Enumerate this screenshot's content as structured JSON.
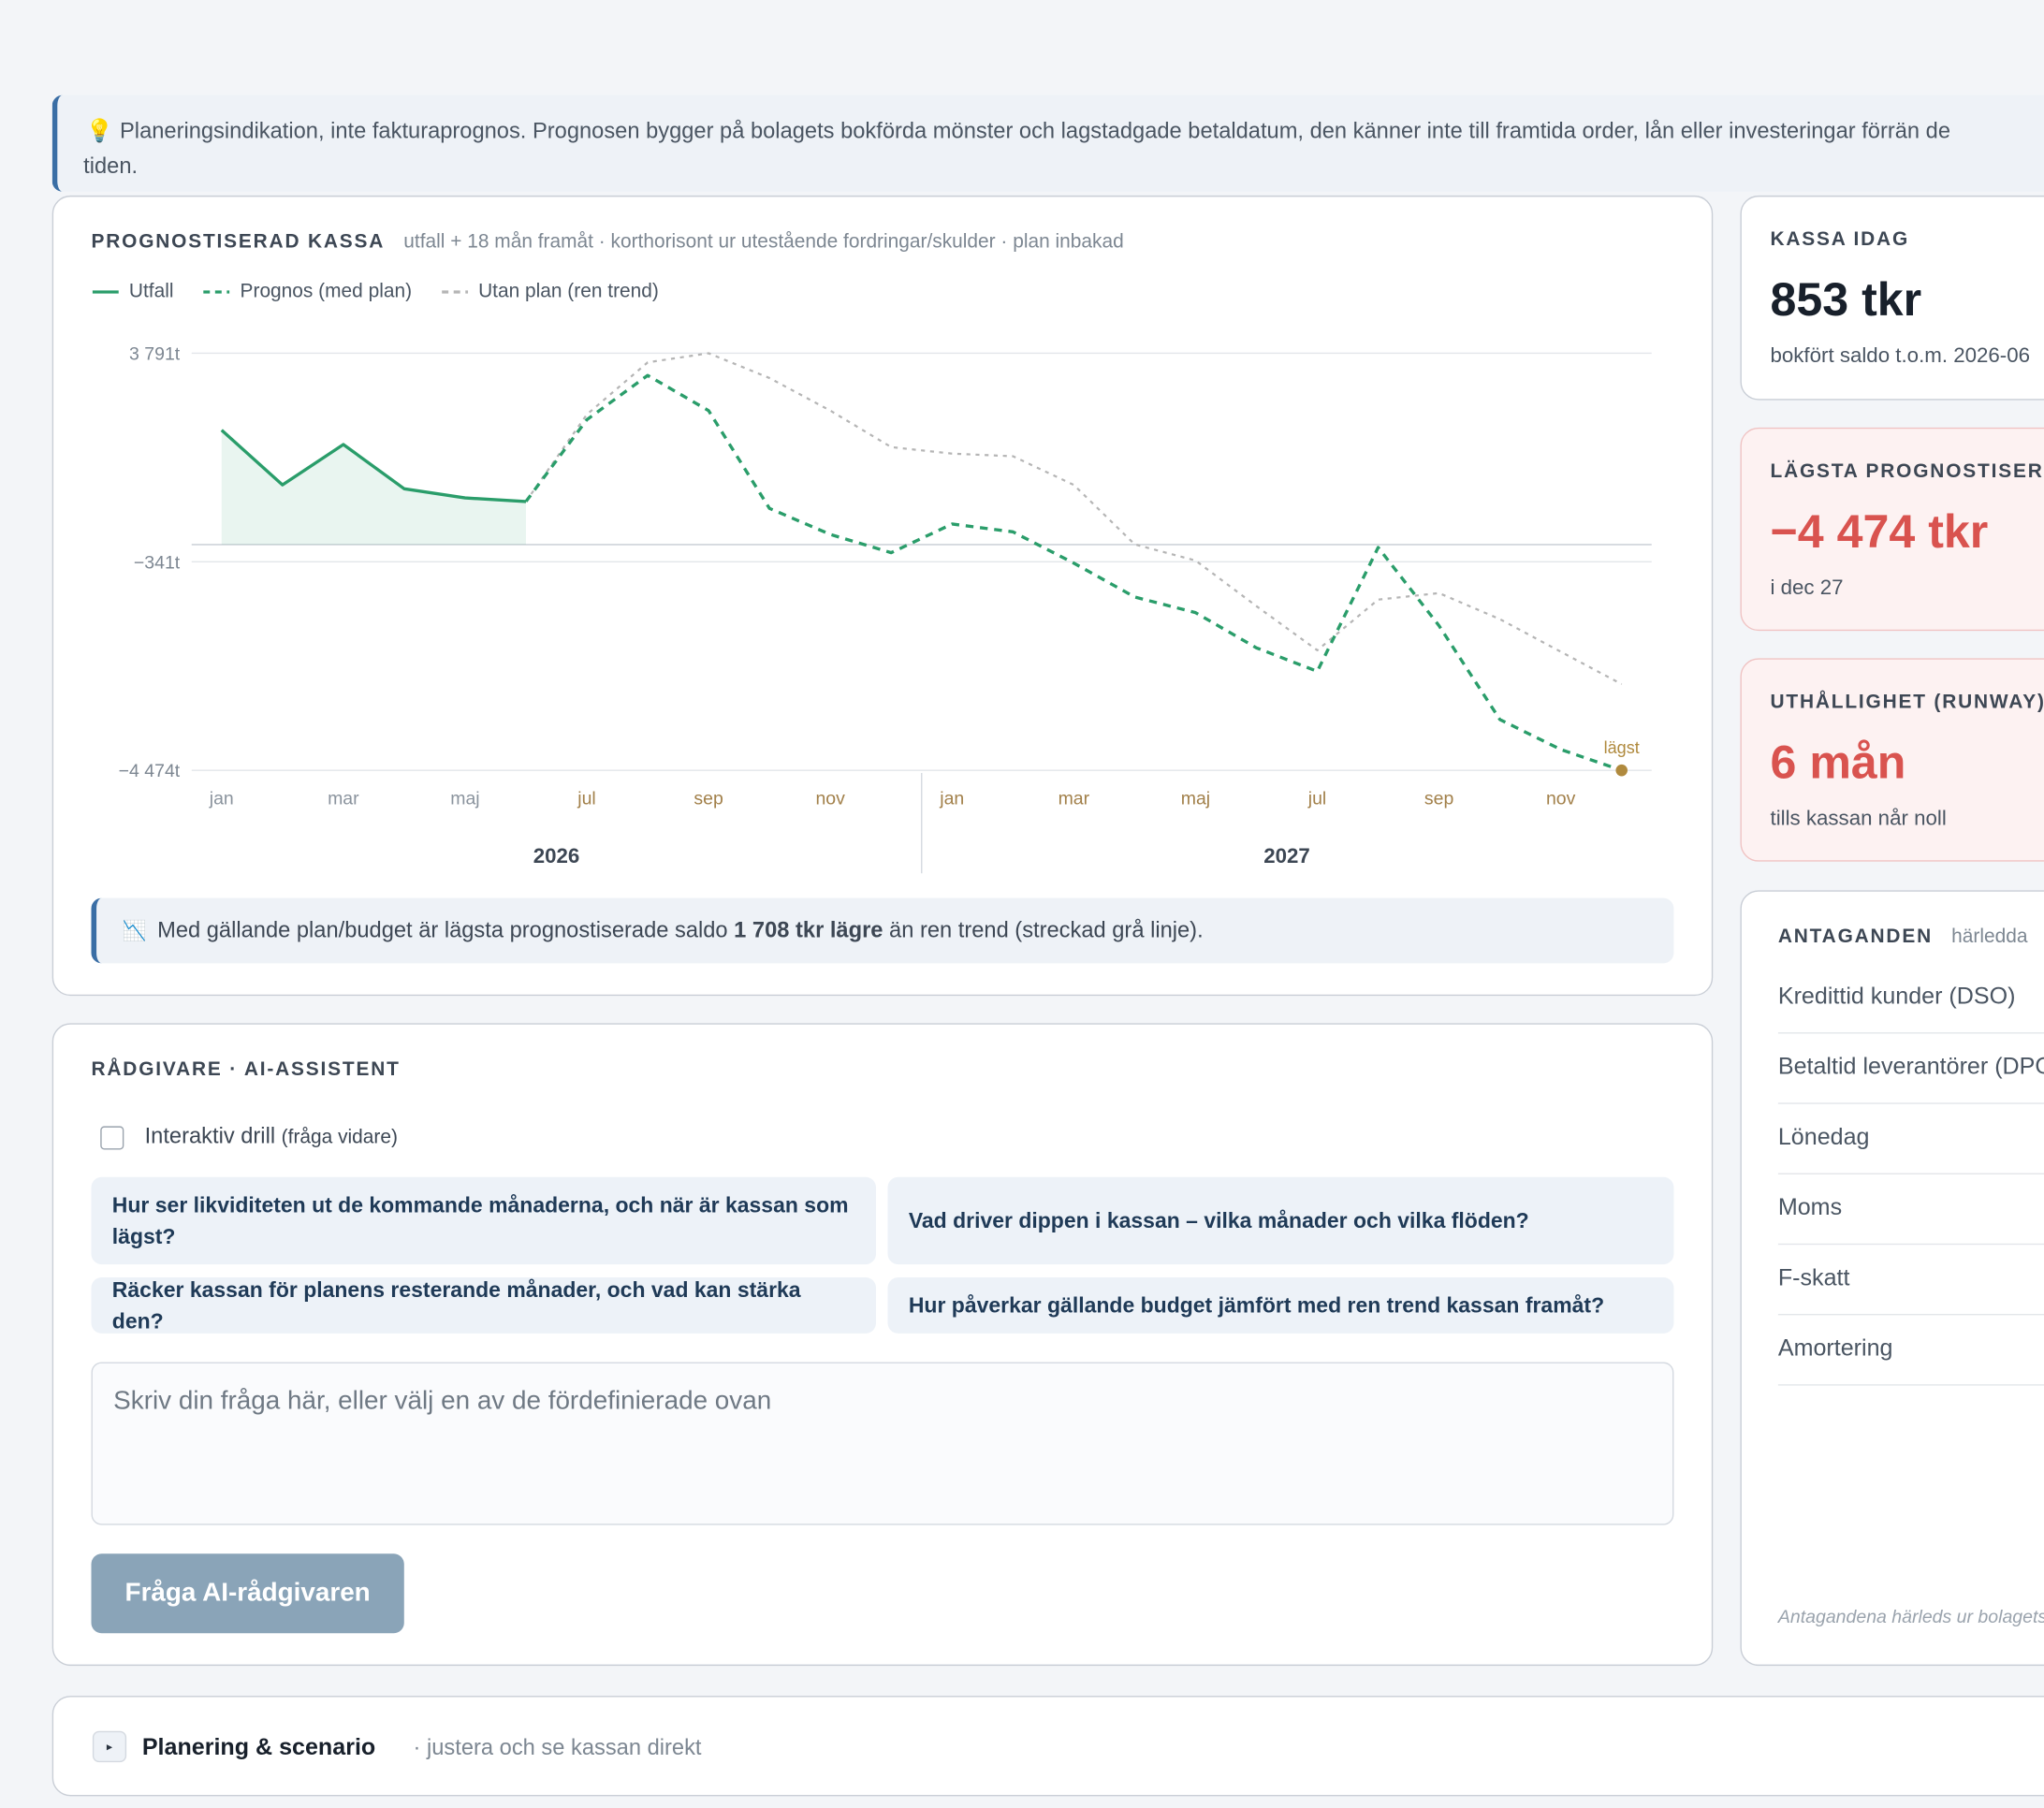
{
  "banner": {
    "icon": "💡",
    "lines": [
      "Planeringsindikation, inte fakturaprognos. Prognosen bygger på bolagets bokförda mönster och lagstadgade betaldatum, den känner inte till framtida order, lån eller investeringar förrän de",
      "tiden."
    ]
  },
  "chart_card": {
    "title": "PROGNOSTISERAD KASSA",
    "subtitle": "utfall + 18 mån framåt · korthorisont ur utestående fordringar/skulder · plan inbakad",
    "note": {
      "icon": "📉",
      "before": "Med gällande plan/budget är lägsta prognostiserade saldo ",
      "bold": "1 708 tkr lägre",
      "after": " än ren trend (streckad grå linje)."
    }
  },
  "chart_data": {
    "type": "line",
    "categories": [
      "jan",
      null,
      "mar",
      null,
      "maj",
      null,
      "jul",
      null,
      "sep",
      null,
      "nov",
      null,
      "jan",
      null,
      "mar",
      null,
      "maj",
      null,
      "jul",
      null,
      "sep",
      null,
      "nov",
      null
    ],
    "year_labels": [
      "2026",
      "2027"
    ],
    "ylim": [
      -4474,
      3791
    ],
    "yticks": [
      {
        "value": 3791,
        "label": "3 791t"
      },
      {
        "value": -341,
        "label": "−341t"
      },
      {
        "value": -4474,
        "label": "−4 474t"
      }
    ],
    "grid": true,
    "series": [
      {
        "name": "Utfall",
        "color": "#2a9d6a",
        "dashed": false,
        "area": true,
        "values": [
          2267,
          1182,
          1983,
          1105,
          924,
          853,
          null,
          null,
          null,
          null,
          null,
          null,
          null,
          null,
          null,
          null,
          null,
          null,
          null,
          null,
          null,
          null,
          null,
          null
        ]
      },
      {
        "name": "Prognos (med plan)",
        "color": "#2a9d6a",
        "dashed": true,
        "area": false,
        "values": [
          null,
          null,
          null,
          null,
          null,
          853,
          2474,
          3352,
          2654,
          717,
          201,
          -161,
          407,
          252,
          -368,
          -1039,
          -1349,
          -2047,
          -2512,
          -58,
          -1608,
          -3467,
          -4061,
          -4474
        ]
      },
      {
        "name": "Utan plan (ren trend)",
        "color": "#b5b5b5",
        "dashed": true,
        "area": false,
        "values": [
          null,
          null,
          null,
          null,
          null,
          853,
          2577,
          3610,
          3791,
          3300,
          2654,
          1931,
          1802,
          1750,
          1182,
          4,
          -316,
          -1220,
          -2095,
          -1091,
          -962,
          -1478,
          -2124,
          -2766
        ]
      }
    ],
    "annotation": {
      "text": "lägst",
      "color": "#b08a3e"
    }
  },
  "kpis": [
    {
      "label": "KASSA IDAG",
      "value": "853 tkr",
      "sub": "bokfört saldo t.o.m. 2026-06"
    },
    {
      "label": "LÄGSTA PROGNOSTISERAD KASSA",
      "value": "−4 474 tkr",
      "sub": "i dec 27"
    },
    {
      "label": "UTHÅLLIGHET (RUNWAY)",
      "value": "6 mån",
      "sub": "tills kassan når noll"
    }
  ],
  "assumptions": {
    "title": "ANTAGANDEN",
    "subtitle": "härledda",
    "rows": [
      "Kredittid kunder (DSO)",
      "Betaltid leverantörer (DPO)",
      "Lönedag",
      "Moms",
      "F-skatt",
      "Amortering"
    ],
    "footer": "Antagandena härleds ur bolagets bokföring"
  },
  "advisor": {
    "title": "RÅDGIVARE · AI-ASSISTENT",
    "drill": "Interaktiv drill",
    "drill_hint": "(fråga vidare)",
    "suggestions": [
      "Hur ser likviditeten ut de kommande månaderna, och när är kassan som lägst?",
      "Vad driver dippen i kassan – vilka månader och vilka flöden?",
      "Räcker kassan för planens resterande månader, och vad kan stärka den?",
      "Hur påverkar gällande budget jämfört med ren trend kassan framåt?"
    ],
    "placeholder": "Skriv din fråga här, eller välj en av de fördefinierade ovan",
    "button": "Fråga AI-rådgivaren"
  },
  "planning": {
    "icon": "▸",
    "title": "Planering & scenario",
    "subtitle": "· justera och se kassan direkt"
  }
}
